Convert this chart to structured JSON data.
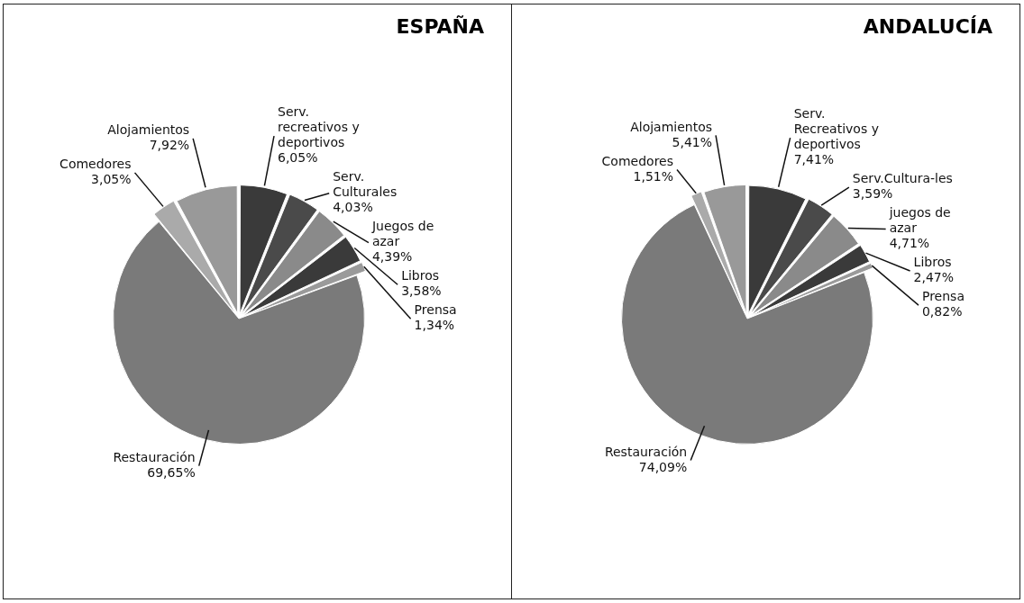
{
  "chart_data": [
    {
      "type": "pie",
      "title": "ESPAÑA",
      "legend": false,
      "categories": [
        "Serv. recreativos y deportivos",
        "Serv. Culturales",
        "Juegos de azar",
        "Libros",
        "Prensa",
        "Restauración",
        "Comedores",
        "Alojamientos"
      ],
      "values": [
        6.05,
        4.03,
        4.39,
        3.58,
        1.34,
        69.65,
        3.05,
        7.92
      ],
      "value_labels": [
        "6,05%",
        "4,03%",
        "4,39%",
        "3,58%",
        "1,34%",
        "69,65%",
        "3,05%",
        "7,92%"
      ],
      "colors": [
        "#3a3a3a",
        "#4a4a4a",
        "#8a8a8a",
        "#3a3a3a",
        "#9a9a9a",
        "#7a7a7a",
        "#aaaaaa",
        "#999999"
      ]
    },
    {
      "type": "pie",
      "title": "ANDALUCÍA",
      "legend": false,
      "categories": [
        "Serv. Recreativos y deportivos",
        "Serv.Cultura-les",
        "juegos de azar",
        "Libros",
        "Prensa",
        "Restauración",
        "Comedores",
        "Alojamientos"
      ],
      "values": [
        7.41,
        3.59,
        4.71,
        2.47,
        0.82,
        74.09,
        1.51,
        5.41
      ],
      "value_labels": [
        "7,41%",
        "3,59%",
        "4,71%",
        "2,47%",
        "0,82%",
        "74,09%",
        "1,51%",
        "5,41%"
      ],
      "colors": [
        "#3a3a3a",
        "#4a4a4a",
        "#8a8a8a",
        "#3a3a3a",
        "#9a9a9a",
        "#7a7a7a",
        "#aaaaaa",
        "#999999"
      ]
    }
  ]
}
